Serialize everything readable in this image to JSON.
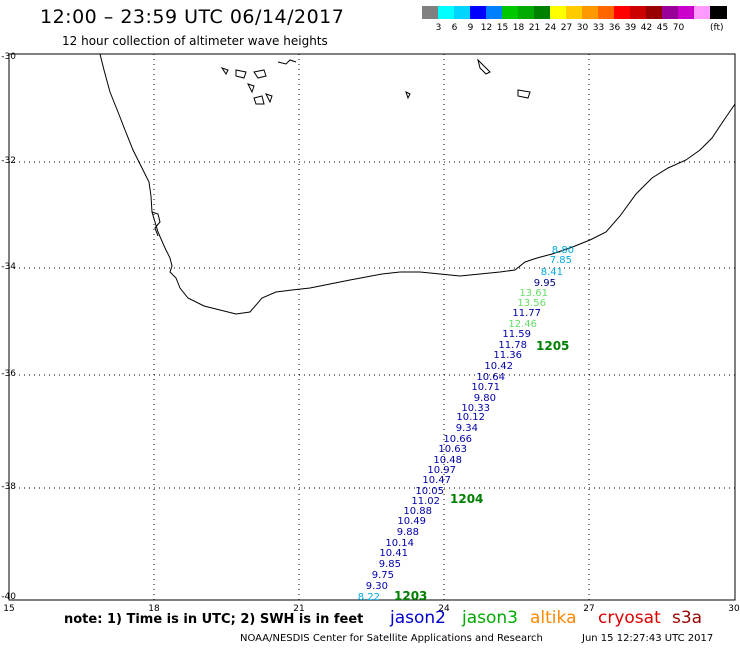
{
  "header": {
    "title": "12:00 – 23:59 UTC 06/14/2017",
    "subtitle": "12 hour collection of altimeter wave heights"
  },
  "legend": {
    "colors": [
      "#808080",
      "#00ffff",
      "#00d4ff",
      "#0000ff",
      "#0080ff",
      "#00c800",
      "#00aa00",
      "#008000",
      "#ffff00",
      "#ffcc00",
      "#ff9900",
      "#ff6600",
      "#ff0000",
      "#cc0000",
      "#990000",
      "#990099",
      "#cc00cc",
      "#ff99ff",
      "#000000"
    ],
    "labels": [
      "3",
      "6",
      "9",
      "12",
      "15",
      "18",
      "21",
      "24",
      "27",
      "30",
      "33",
      "36",
      "39",
      "42",
      "45",
      "70"
    ],
    "unit": "(ft)"
  },
  "axes": {
    "lat_labels": [
      "-30",
      "-32",
      "-34",
      "-36",
      "-38",
      "-40"
    ],
    "lon_labels": [
      "15",
      "18",
      "21",
      "24",
      "27",
      "30"
    ]
  },
  "passes": [
    {
      "id": "1205",
      "color": "#008000"
    },
    {
      "id": "1204",
      "color": "#008000"
    },
    {
      "id": "1203",
      "color": "#008000"
    }
  ],
  "readings": [
    {
      "value": "8.80",
      "color": "#00aadd"
    },
    {
      "value": "7.85",
      "color": "#00aadd"
    },
    {
      "value": "8.41",
      "color": "#00aadd"
    },
    {
      "value": "9.95",
      "color": "#000080"
    },
    {
      "value": "13.61",
      "color": "#66dd66"
    },
    {
      "value": "13.56",
      "color": "#66dd66"
    },
    {
      "value": "11.77",
      "color": "#0000aa"
    },
    {
      "value": "12.46",
      "color": "#66dd66"
    },
    {
      "value": "11.59",
      "color": "#0000aa"
    },
    {
      "value": "11.78",
      "color": "#0000aa"
    },
    {
      "value": "11.36",
      "color": "#0000aa"
    },
    {
      "value": "10.42",
      "color": "#0000aa"
    },
    {
      "value": "10.64",
      "color": "#0000aa"
    },
    {
      "value": "10.71",
      "color": "#0000aa"
    },
    {
      "value": "9.80",
      "color": "#0000aa"
    },
    {
      "value": "10.33",
      "color": "#0000aa"
    },
    {
      "value": "10.12",
      "color": "#0000aa"
    },
    {
      "value": "9.34",
      "color": "#0000aa"
    },
    {
      "value": "10.66",
      "color": "#0000aa"
    },
    {
      "value": "10.63",
      "color": "#0000aa"
    },
    {
      "value": "10.48",
      "color": "#0000aa"
    },
    {
      "value": "10.97",
      "color": "#0000aa"
    },
    {
      "value": "10.47",
      "color": "#0000aa"
    },
    {
      "value": "10.05",
      "color": "#0000aa"
    },
    {
      "value": "11.02",
      "color": "#0000aa"
    },
    {
      "value": "10.88",
      "color": "#0000aa"
    },
    {
      "value": "10.49",
      "color": "#0000aa"
    },
    {
      "value": "9.88",
      "color": "#0000aa"
    },
    {
      "value": "10.14",
      "color": "#0000aa"
    },
    {
      "value": "10.41",
      "color": "#0000aa"
    },
    {
      "value": "9.85",
      "color": "#0000aa"
    },
    {
      "value": "9.75",
      "color": "#0000aa"
    },
    {
      "value": "9.30",
      "color": "#0000aa"
    },
    {
      "value": "8.22",
      "color": "#00aadd"
    }
  ],
  "footer": {
    "note": "note: 1) Time is in UTC; 2) SWH is in feet",
    "satellites": [
      {
        "name": "jason2",
        "color": "#0000cc"
      },
      {
        "name": "jason3",
        "color": "#00aa00"
      },
      {
        "name": "altika",
        "color": "#ff8800"
      },
      {
        "name": "cryosat",
        "color": "#dd0000"
      },
      {
        "name": "s3a",
        "color": "#990000"
      }
    ],
    "credit": "NOAA/NESDIS Center for Satellite Applications and Research",
    "timestamp": "Jun 15 12:27:43 UTC 2017"
  }
}
